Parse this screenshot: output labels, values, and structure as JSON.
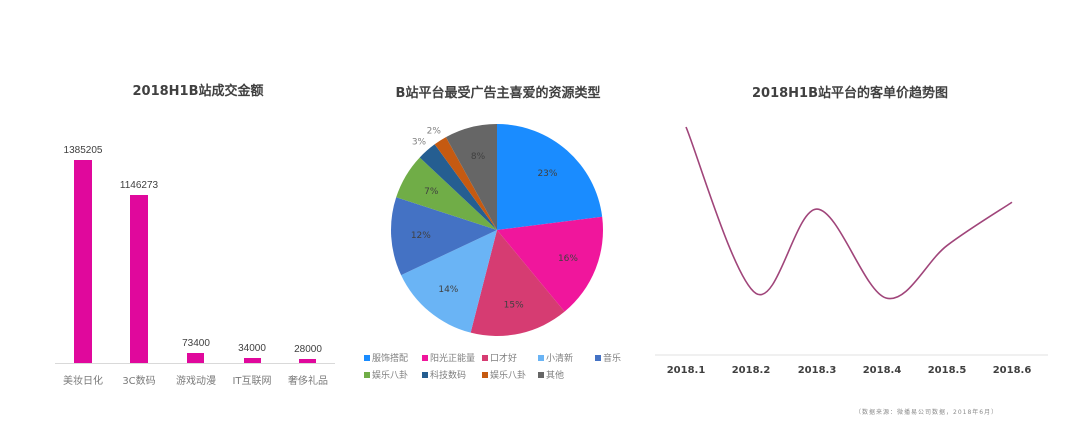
{
  "chart_data": [
    {
      "type": "bar",
      "title": "2018H1B站成交金额",
      "categories": [
        "美妆日化",
        "3C数码",
        "游戏动漫",
        "IT互联网",
        "奢侈礼品"
      ],
      "values": [
        1385205,
        1146273,
        73400,
        34000,
        28000
      ],
      "value_labels": [
        "1385205",
        "1146273",
        "73400",
        "34000",
        "28000"
      ],
      "xlabel": "",
      "ylabel": "",
      "grid": false,
      "color": "#e0089c"
    },
    {
      "type": "pie",
      "title": "B站平台最受广告主喜爱的资源类型",
      "labels": [
        "服饰搭配",
        "阳光正能量",
        "口才好",
        "小清新",
        "音乐",
        "娱乐八卦",
        "科技数码",
        "娱乐八卦",
        "其他"
      ],
      "values": [
        23,
        16,
        15,
        14,
        12,
        7,
        3,
        2,
        8
      ],
      "value_labels": [
        "23%",
        "16%",
        "15%",
        "14%",
        "12%",
        "7%",
        "3%",
        "2%",
        "8%"
      ],
      "colors": [
        "#1a8cff",
        "#f0169c",
        "#d63c72",
        "#6ab4f5",
        "#4472c4",
        "#70ad47",
        "#255e91",
        "#c55a11",
        "#666666"
      ],
      "legend_position": "bottom"
    },
    {
      "type": "line",
      "title": "2018H1B站平台的客单价趋势图",
      "x": [
        "2018.1",
        "2018.2",
        "2018.3",
        "2018.4",
        "2018.5",
        "2018.6"
      ],
      "values": [
        100,
        27,
        64,
        25,
        48,
        67
      ],
      "values_note": "relative values; no y-axis labels shown",
      "smooth": true,
      "grid": false,
      "color": "#a0457a"
    }
  ],
  "bar_chart": {
    "title": "2018H1B站成交金额",
    "bars": [
      {
        "label": "美妆日化",
        "value": "1385205"
      },
      {
        "label": "3C数码",
        "value": "1146273"
      },
      {
        "label": "游戏动漫",
        "value": "73400"
      },
      {
        "label": "IT互联网",
        "value": "34000"
      },
      {
        "label": "奢侈礼品",
        "value": "28000"
      }
    ]
  },
  "pie_chart": {
    "title": "B站平台最受广告主喜爱的资源类型",
    "slices": [
      {
        "label": "服饰搭配",
        "pct": "23%",
        "color": "#1a8cff"
      },
      {
        "label": "阳光正能量",
        "pct": "16%",
        "color": "#f0169c"
      },
      {
        "label": "口才好",
        "pct": "15%",
        "color": "#d63c72"
      },
      {
        "label": "小清新",
        "pct": "14%",
        "color": "#6ab4f5"
      },
      {
        "label": "音乐",
        "pct": "12%",
        "color": "#4472c4"
      },
      {
        "label": "娱乐八卦",
        "pct": "7%",
        "color": "#70ad47"
      },
      {
        "label": "科技数码",
        "pct": "3%",
        "color": "#255e91"
      },
      {
        "label": "娱乐八卦",
        "pct": "2%",
        "color": "#c55a11"
      },
      {
        "label": "其他",
        "pct": "8%",
        "color": "#666666"
      }
    ]
  },
  "line_chart": {
    "title": "2018H1B站平台的客单价趋势图",
    "x_labels": [
      "2018.1",
      "2018.2",
      "2018.3",
      "2018.4",
      "2018.5",
      "2018.6"
    ]
  },
  "footnote": "（数据来源：微播易公司数据，2018年6月）"
}
